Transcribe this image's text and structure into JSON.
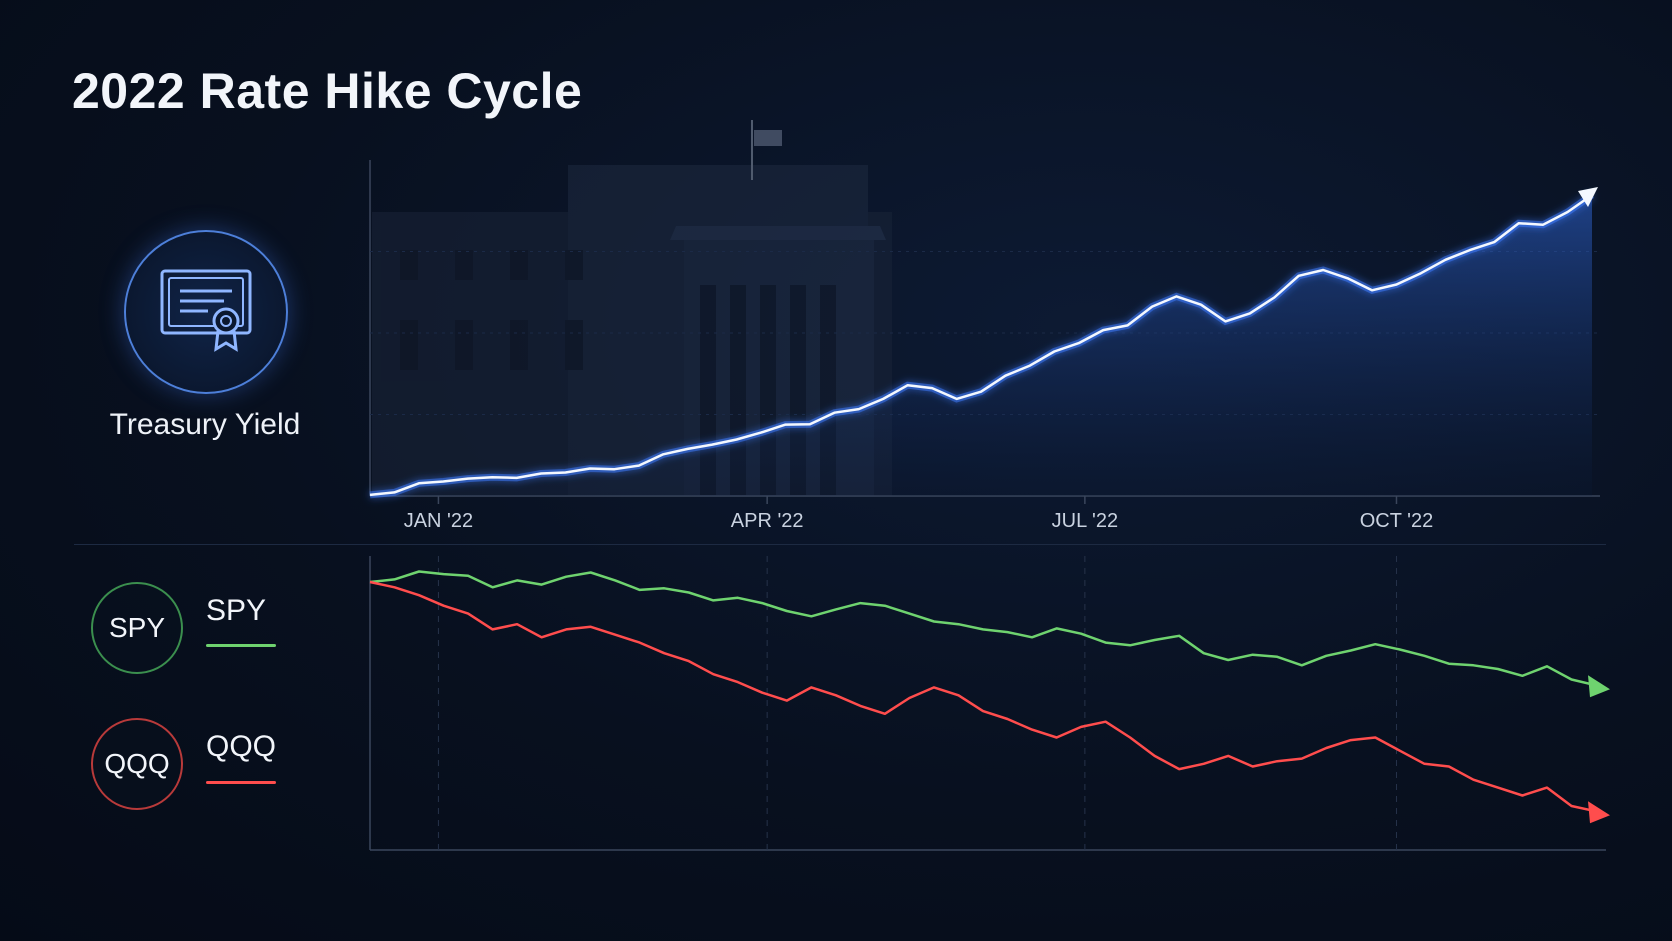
{
  "title": "2022 Rate Hike Cycle",
  "legend": {
    "treasury_label": "Treasury Yield",
    "treasury_icon": "certificate-icon",
    "spy_badge": "SPY",
    "spy_label": "SPY",
    "qqq_badge": "QQQ",
    "qqq_label": "QQQ"
  },
  "colors": {
    "treasury": "#f4f8ff",
    "treasury_glow": "#3d7bff",
    "spy": "#6fd36f",
    "qqq": "#ff4d4d",
    "background": "#08101f"
  },
  "chart_data": [
    {
      "type": "area",
      "series": [
        {
          "name": "Treasury Yield",
          "x": [
            0,
            0.02,
            0.04,
            0.06,
            0.08,
            0.1,
            0.12,
            0.14,
            0.16,
            0.18,
            0.2,
            0.22,
            0.24,
            0.26,
            0.28,
            0.3,
            0.32,
            0.34,
            0.36,
            0.38,
            0.4,
            0.42,
            0.44,
            0.46,
            0.48,
            0.5,
            0.52,
            0.54,
            0.56,
            0.58,
            0.6,
            0.62,
            0.64,
            0.66,
            0.68,
            0.7,
            0.72,
            0.74,
            0.76,
            0.78,
            0.8,
            0.82,
            0.84,
            0.86,
            0.88,
            0.9,
            0.92,
            0.94,
            0.96,
            0.98,
            1.0
          ],
          "values": [
            0.3,
            1.0,
            3.5,
            4.0,
            4.8,
            5.2,
            5.0,
            6.2,
            6.5,
            7.6,
            7.4,
            8.4,
            11.5,
            13.0,
            14.2,
            15.6,
            17.5,
            19.7,
            19.8,
            23.0,
            24.0,
            26.8,
            30.6,
            29.8,
            26.8,
            28.8,
            33.2,
            36.0,
            39.9,
            42.2,
            45.8,
            47.1,
            52.3,
            55.1,
            52.8,
            48.2,
            50.4,
            54.8,
            60.8,
            62.4,
            60.1,
            56.8,
            58.4,
            61.5,
            65.2,
            67.9,
            70.1,
            75.3,
            74.9,
            78.4,
            83.1
          ]
        }
      ],
      "ticks": [
        "JAN '22",
        "APR '22",
        "JUL '22",
        "OCT '22"
      ],
      "trend": "up"
    },
    {
      "type": "line",
      "series": [
        {
          "name": "SPY",
          "x": [
            0,
            0.02,
            0.04,
            0.06,
            0.08,
            0.1,
            0.12,
            0.14,
            0.16,
            0.18,
            0.2,
            0.22,
            0.24,
            0.26,
            0.28,
            0.3,
            0.32,
            0.34,
            0.36,
            0.38,
            0.4,
            0.42,
            0.44,
            0.46,
            0.48,
            0.5,
            0.52,
            0.54,
            0.56,
            0.58,
            0.6,
            0.62,
            0.64,
            0.66,
            0.68,
            0.7,
            0.72,
            0.74,
            0.76,
            0.78,
            0.8,
            0.82,
            0.84,
            0.86,
            0.88,
            0.9,
            0.92,
            0.94,
            0.96,
            0.98,
            1.0
          ],
          "values": [
            0,
            0.5,
            2.0,
            1.5,
            1.2,
            -1.0,
            0.3,
            -0.5,
            1.0,
            1.8,
            0.3,
            -1.5,
            -1.2,
            -2.0,
            -3.5,
            -3.0,
            -4.0,
            -5.5,
            -6.5,
            -5.2,
            -4.0,
            -4.5,
            -6.0,
            -7.5,
            -8.0,
            -9.0,
            -9.5,
            -10.5,
            -8.8,
            -9.8,
            -11.5,
            -12.0,
            -11.0,
            -10.2,
            -13.5,
            -14.8,
            -13.8,
            -14.2,
            -15.8,
            -14.0,
            -13.0,
            -11.8,
            -12.8,
            -14.0,
            -15.5,
            -15.8,
            -16.5,
            -17.8,
            -16.0,
            -18.5,
            -19.6
          ]
        },
        {
          "name": "QQQ",
          "x": [
            0,
            0.02,
            0.04,
            0.06,
            0.08,
            0.1,
            0.12,
            0.14,
            0.16,
            0.18,
            0.2,
            0.22,
            0.24,
            0.26,
            0.28,
            0.3,
            0.32,
            0.34,
            0.36,
            0.38,
            0.4,
            0.42,
            0.44,
            0.46,
            0.48,
            0.5,
            0.52,
            0.54,
            0.56,
            0.58,
            0.6,
            0.62,
            0.64,
            0.66,
            0.68,
            0.7,
            0.72,
            0.74,
            0.76,
            0.78,
            0.8,
            0.82,
            0.84,
            0.86,
            0.88,
            0.9,
            0.92,
            0.94,
            0.96,
            0.98,
            1.0
          ],
          "values": [
            0,
            -1.0,
            -2.5,
            -4.5,
            -6.0,
            -9.0,
            -8.0,
            -10.5,
            -9.0,
            -8.5,
            -10.0,
            -11.5,
            -13.5,
            -15.0,
            -17.5,
            -19.0,
            -21.0,
            -22.5,
            -20.0,
            -21.5,
            -23.5,
            -25.0,
            -22.0,
            -20.0,
            -21.5,
            -24.5,
            -26.0,
            -28.0,
            -29.5,
            -27.5,
            -26.5,
            -29.5,
            -33.0,
            -35.5,
            -34.5,
            -33.0,
            -35.0,
            -34.0,
            -33.5,
            -31.5,
            -30.0,
            -29.5,
            -32.0,
            -34.5,
            -35.0,
            -37.5,
            -39.0,
            -40.5,
            -39.0,
            -42.5,
            -43.5
          ]
        }
      ],
      "trend": "down"
    }
  ]
}
